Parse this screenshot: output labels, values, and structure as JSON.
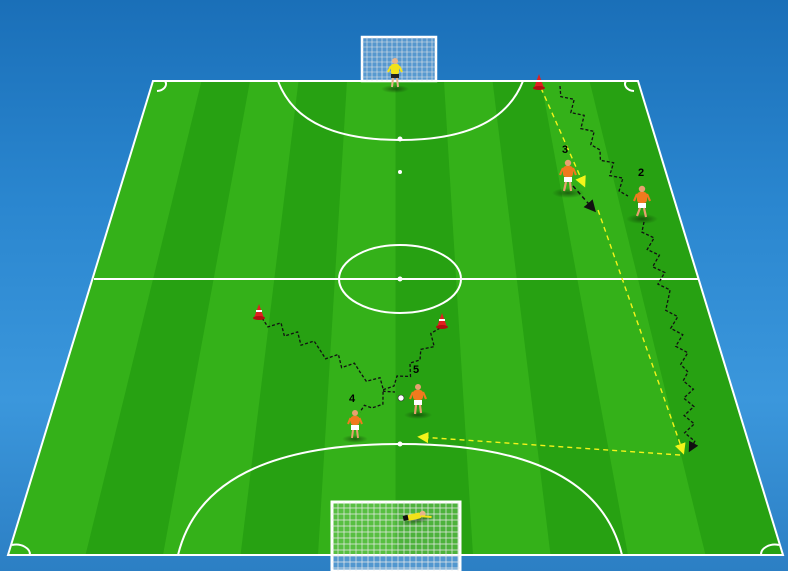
{
  "diagram": {
    "players": [
      {
        "id": "player-3",
        "number": "3"
      },
      {
        "id": "player-2",
        "number": "2"
      },
      {
        "id": "player-5",
        "number": "5"
      },
      {
        "id": "player-4",
        "number": "4"
      }
    ],
    "colors": {
      "field_light": "#38b81c",
      "field_dark": "#239a10",
      "lines": "#ffffff",
      "attacker": "#f07a1e",
      "goalkeeper": "#f2e21a",
      "cone": "#e02020",
      "pass_line": "#f4f41a",
      "dribble_line": "#111111"
    },
    "icons": [
      "cone-icon",
      "goal-icon",
      "ball-icon",
      "player-icon",
      "goalkeeper-icon"
    ]
  }
}
